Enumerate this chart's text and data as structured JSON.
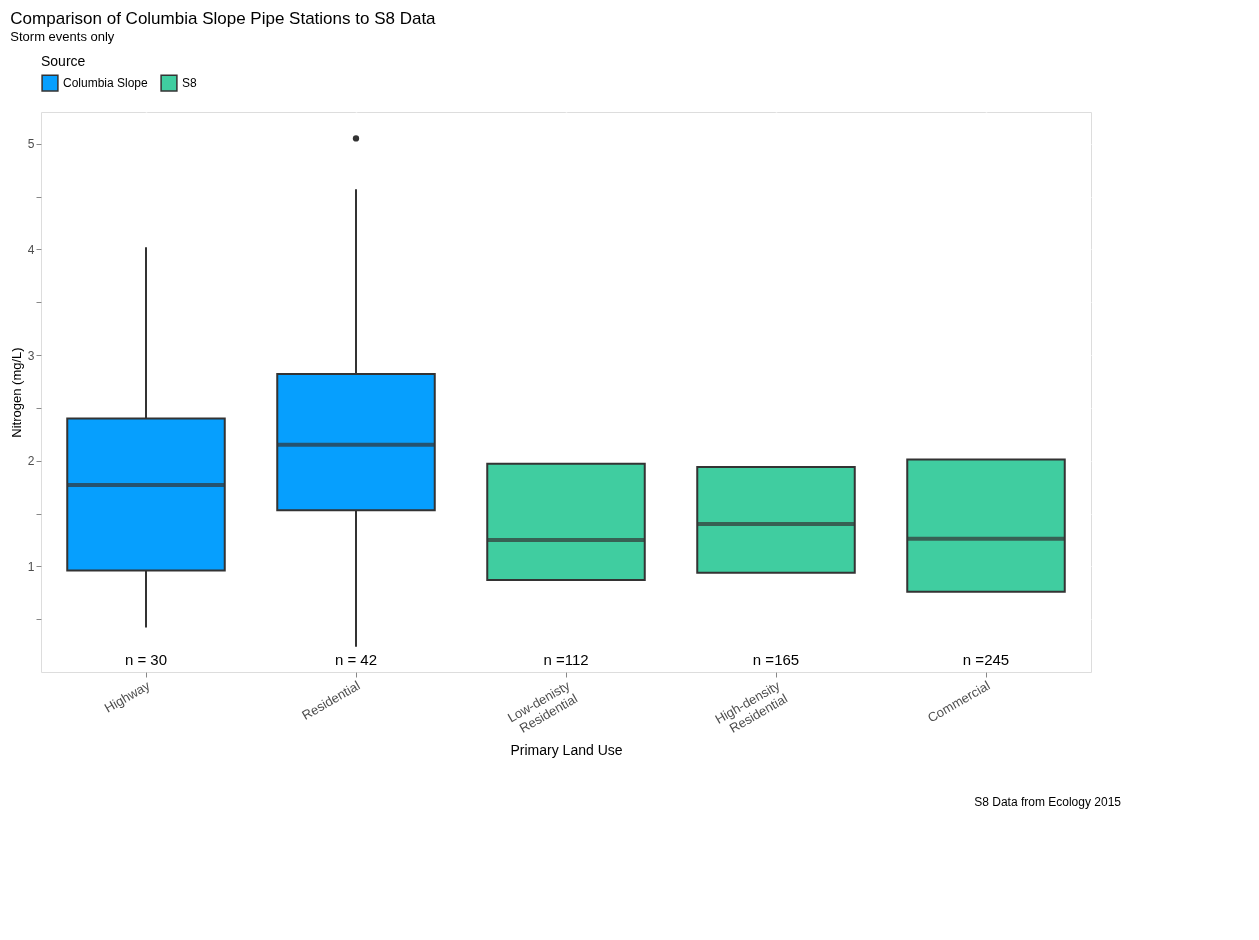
{
  "chart_data": {
    "type": "box",
    "title": "Comparison of Columbia Slope Pipe Stations to S8 Data",
    "subtitle": "Storm events only",
    "xlabel": "Primary Land Use",
    "ylabel": "Nitrogen (mg/L)",
    "legend_title": "Source",
    "legend": "top",
    "categories": [
      "Highway",
      "Residential",
      "Low-denisty\nResidential",
      "High-density\nResidential",
      "Commercial"
    ],
    "series": [
      {
        "name": "Columbia Slope",
        "color": "#069ffe",
        "boxes": [
          {
            "low": 0.42,
            "q1": 0.96,
            "median": 1.77,
            "q3": 2.4,
            "high": 4.02
          },
          {
            "low": 0.24,
            "q1": 1.53,
            "median": 2.15,
            "q3": 2.82,
            "high": 4.57,
            "outliers": [
              5.05
            ]
          },
          null,
          null,
          null
        ]
      },
      {
        "name": "S8",
        "color": "#40cda0",
        "boxes": [
          null,
          null,
          {
            "low": 0.87,
            "q1": 0.87,
            "median": 1.25,
            "q3": 1.97,
            "high": 1.97
          },
          {
            "low": 0.94,
            "q1": 0.94,
            "median": 1.4,
            "q3": 1.94,
            "high": 1.94
          },
          {
            "low": 0.76,
            "q1": 0.76,
            "median": 1.26,
            "q3": 2.01,
            "high": 2.01
          }
        ]
      }
    ],
    "ylim": [
      0,
      5.3
    ],
    "yticks": [
      {
        "value": 0.5,
        "label": null
      },
      1,
      {
        "value": 1.5,
        "label": null
      },
      2,
      {
        "value": 2.5,
        "label": null
      },
      3,
      {
        "value": 3.5,
        "label": null
      },
      4,
      {
        "value": 4.5,
        "label": null
      },
      5
    ],
    "grid": true,
    "annotations": [
      "n = 30",
      "n = 42",
      "n =112",
      "n =165",
      "n =245",
      "S8 Data from Ecology 2015"
    ]
  }
}
